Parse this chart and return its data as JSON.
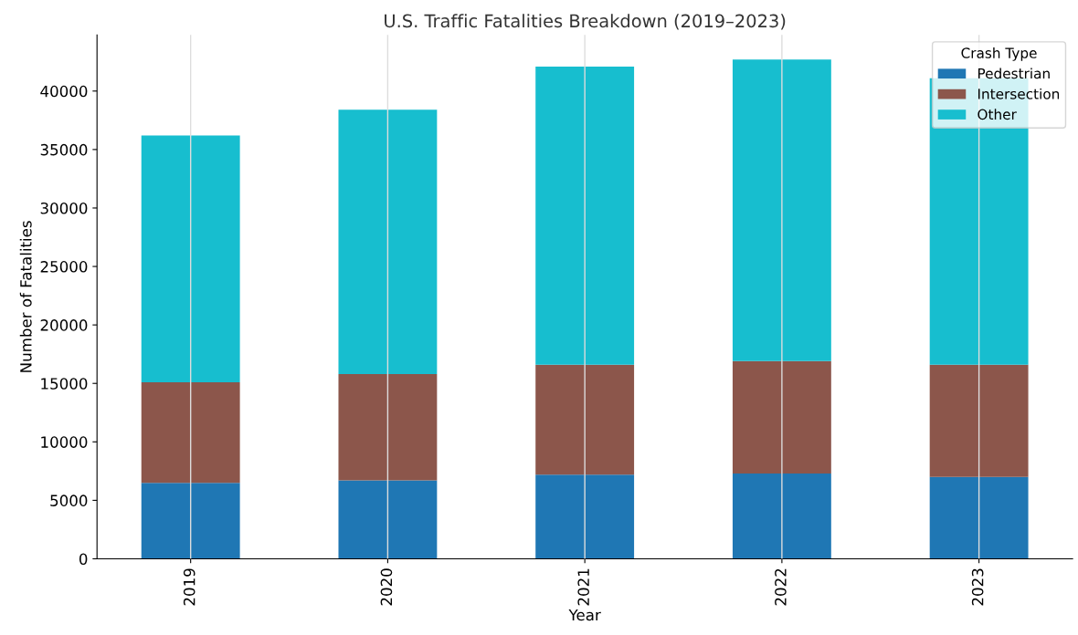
{
  "chart_data": {
    "type": "bar",
    "stacked": true,
    "title": "U.S. Traffic Fatalities Breakdown (2019–2023)",
    "xlabel": "Year",
    "ylabel": "Number of Fatalities",
    "legend_title": "Crash Type",
    "categories": [
      "2019",
      "2020",
      "2021",
      "2022",
      "2023"
    ],
    "series": [
      {
        "name": "Pedestrian",
        "color": "#1f77b4",
        "values": [
          6500,
          6700,
          7200,
          7300,
          7000
        ]
      },
      {
        "name": "Intersection",
        "color": "#8c564b",
        "values": [
          8600,
          9100,
          9400,
          9600,
          9600
        ]
      },
      {
        "name": "Other",
        "color": "#17becf",
        "values": [
          21100,
          22600,
          25500,
          25800,
          24500
        ]
      }
    ],
    "ylim": [
      0,
      44800
    ],
    "yticks": [
      0,
      5000,
      10000,
      15000,
      20000,
      25000,
      30000,
      35000,
      40000
    ],
    "grid": "x",
    "legend": "top right"
  }
}
